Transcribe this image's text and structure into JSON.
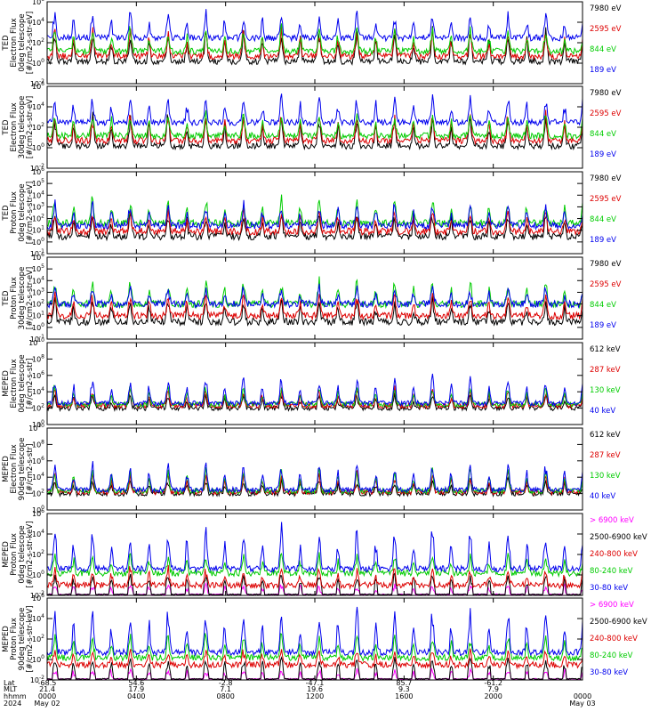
{
  "chart_data": [
    {
      "type": "line",
      "ylabel": [
        "TED",
        "Electron Flux",
        "0deg telescope",
        "[#/cm2-s-str-eV]"
      ],
      "yscale": "log",
      "ylim": [
        0.01,
        1000000
      ],
      "ytick_labels": [
        "10^6",
        "10^4",
        "10^2",
        "10^0",
        "10^-2"
      ],
      "series": [
        {
          "name": "7980 eV",
          "color": "#000000",
          "baseline": 1.5,
          "peak": 2000
        },
        {
          "name": "2595 eV",
          "color": "#dd0000",
          "baseline": 5,
          "peak": 2000
        },
        {
          "name": "844 eV",
          "color": "#00cc00",
          "baseline": 15,
          "peak": 3000
        },
        {
          "name": "189 eV",
          "color": "#0000ee",
          "baseline": 300,
          "peak": 100000
        }
      ]
    },
    {
      "type": "line",
      "ylabel": [
        "TED",
        "Electron Flux",
        "30deg telescope",
        "[#/cm2-s-str-eV]"
      ],
      "yscale": "log",
      "ylim": [
        0.01,
        1000000
      ],
      "ytick_labels": [
        "10^6",
        "10^4",
        "10^2",
        "10^0",
        "10^-2"
      ],
      "series": [
        {
          "name": "7980 eV",
          "color": "#000000",
          "baseline": 1.5,
          "peak": 2000
        },
        {
          "name": "2595 eV",
          "color": "#dd0000",
          "baseline": 5,
          "peak": 2000
        },
        {
          "name": "844 eV",
          "color": "#00cc00",
          "baseline": 15,
          "peak": 3000
        },
        {
          "name": "189 eV",
          "color": "#0000ee",
          "baseline": 300,
          "peak": 100000
        }
      ]
    },
    {
      "type": "line",
      "ylabel": [
        "TED",
        "Proton Flux",
        "0deg telescope",
        "[#/cm2-s-str-eV]"
      ],
      "yscale": "log",
      "ylim": [
        0.1,
        1000000
      ],
      "ytick_labels": [
        "10^6",
        "10^5",
        "10^4",
        "10^3",
        "10^2",
        "10^1",
        "10^0",
        "10^-1"
      ],
      "series": [
        {
          "name": "7980 eV",
          "color": "#000000",
          "baseline": 3,
          "peak": 300
        },
        {
          "name": "2595 eV",
          "color": "#dd0000",
          "baseline": 8,
          "peak": 500
        },
        {
          "name": "844 eV",
          "color": "#00cc00",
          "baseline": 40,
          "peak": 5000
        },
        {
          "name": "189 eV",
          "color": "#0000ee",
          "baseline": 25,
          "peak": 2000
        }
      ]
    },
    {
      "type": "line",
      "ylabel": [
        "TED",
        "Proton Flux",
        "30deg telescope",
        "[#/cm2-s-str-eV]"
      ],
      "yscale": "log",
      "ylim": [
        0.1,
        1000000
      ],
      "ytick_labels": [
        "10^6",
        "10^5",
        "10^4",
        "10^3",
        "10^2",
        "10^1",
        "10^0",
        "10^-1"
      ],
      "series": [
        {
          "name": "7980 eV",
          "color": "#000000",
          "baseline": 3,
          "peak": 300
        },
        {
          "name": "2595 eV",
          "color": "#dd0000",
          "baseline": 10,
          "peak": 800
        },
        {
          "name": "844 eV",
          "color": "#00cc00",
          "baseline": 100,
          "peak": 10000
        },
        {
          "name": "189 eV",
          "color": "#0000ee",
          "baseline": 100,
          "peak": 3000
        }
      ]
    },
    {
      "type": "line",
      "ylabel": [
        "MEPED",
        "Electron Flux",
        "0deg telescope",
        "[#/cm2-s-str]"
      ],
      "yscale": "log",
      "ylim": [
        1,
        10000000000
      ],
      "ytick_labels": [
        "10^10",
        "10^8",
        "10^6",
        "10^4",
        "10^2",
        "10^0"
      ],
      "series": [
        {
          "name": "612 keV",
          "color": "#000000",
          "baseline": 100,
          "peak": 5000
        },
        {
          "name": "287 keV",
          "color": "#dd0000",
          "baseline": 200,
          "peak": 20000
        },
        {
          "name": "130 keV",
          "color": "#00cc00",
          "baseline": 300,
          "peak": 50000
        },
        {
          "name": "40 keV",
          "color": "#0000ee",
          "baseline": 400,
          "peak": 1000000
        }
      ]
    },
    {
      "type": "line",
      "ylabel": [
        "MEPED",
        "Electron Flux",
        "90deg telescope",
        "[#/cm2-s-str]"
      ],
      "yscale": "log",
      "ylim": [
        1,
        10000000000
      ],
      "ytick_labels": [
        "10^10",
        "10^8",
        "10^6",
        "10^4",
        "10^2",
        "10^0"
      ],
      "series": [
        {
          "name": "612 keV",
          "color": "#000000",
          "baseline": 100,
          "peak": 5000
        },
        {
          "name": "287 keV",
          "color": "#dd0000",
          "baseline": 150,
          "peak": 30000
        },
        {
          "name": "130 keV",
          "color": "#00cc00",
          "baseline": 200,
          "peak": 100000
        },
        {
          "name": "40 keV",
          "color": "#0000ee",
          "baseline": 300,
          "peak": 500000
        }
      ]
    },
    {
      "type": "line",
      "ylabel": [
        "MEPED",
        "Proton Flux",
        "0deg telescope",
        "[#/cm2-s-str-keV]"
      ],
      "yscale": "log",
      "ylim": [
        0.01,
        1000000
      ],
      "ytick_labels": [
        "10^6",
        "10^4",
        "10^2",
        "10^0",
        "10^-2"
      ],
      "series": [
        {
          "name": "> 6900 keV",
          "color": "#ff00ff",
          "baseline": 0.02,
          "peak": 0.1
        },
        {
          "name": "2500-6900 keV",
          "color": "#000000",
          "baseline": 0.05,
          "peak": 1
        },
        {
          "name": "240-800 keV",
          "color": "#dd0000",
          "baseline": 0.1,
          "peak": 5
        },
        {
          "name": "80-240 keV",
          "color": "#00cc00",
          "baseline": 1.5,
          "peak": 100
        },
        {
          "name": "30-80 keV",
          "color": "#0000ee",
          "baseline": 4,
          "peak": 50000
        }
      ]
    },
    {
      "type": "line",
      "ylabel": [
        "MEPED",
        "Proton Flux",
        "90deg telescope",
        "[#/cm2-s-str-keV]"
      ],
      "yscale": "log",
      "ylim": [
        0.01,
        1000000
      ],
      "ytick_labels": [
        "10^6",
        "10^4",
        "10^2",
        "10^0",
        "10^-2"
      ],
      "series": [
        {
          "name": "> 6900 keV",
          "color": "#ff00ff",
          "baseline": 0.02,
          "peak": 0.1
        },
        {
          "name": "2500-6900 keV",
          "color": "#000000",
          "baseline": 0.05,
          "peak": 1
        },
        {
          "name": "240-800 keV",
          "color": "#dd0000",
          "baseline": 0.3,
          "peak": 10
        },
        {
          "name": "80-240 keV",
          "color": "#00cc00",
          "baseline": 1.5,
          "peak": 300
        },
        {
          "name": "30-80 keV",
          "color": "#0000ee",
          "baseline": 5,
          "peak": 100000
        }
      ]
    }
  ],
  "x_axis": {
    "row_labels": [
      "Lat",
      "MLT",
      "hhmm",
      "2024"
    ],
    "columns": [
      {
        "Lat": "-68.5",
        "MLT": "21.4",
        "hhmm": "0000",
        "2024": "May 02"
      },
      {
        "Lat": "54.6",
        "MLT": "17.9",
        "hhmm": "0400",
        "2024": ""
      },
      {
        "Lat": "-2.8",
        "MLT": "7.1",
        "hhmm": "0800",
        "2024": ""
      },
      {
        "Lat": "-47.1",
        "MLT": "19.6",
        "hhmm": "1200",
        "2024": ""
      },
      {
        "Lat": "85.7",
        "MLT": "9.3",
        "hhmm": "1600",
        "2024": ""
      },
      {
        "Lat": "-61.2",
        "MLT": "7.9",
        "hhmm": "2000",
        "2024": ""
      },
      {
        "Lat": "",
        "MLT": "",
        "hhmm": "0000",
        "2024": "May 03"
      }
    ]
  }
}
